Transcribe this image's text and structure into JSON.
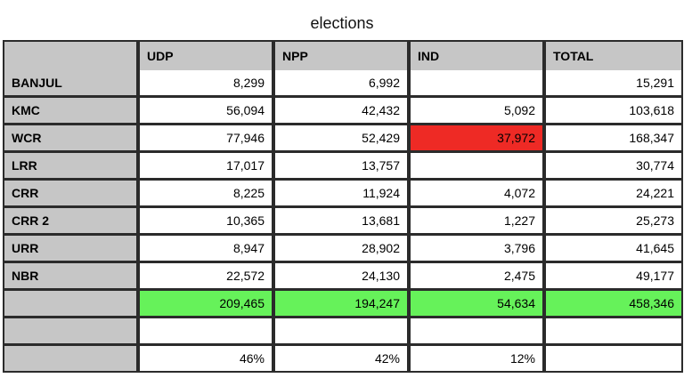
{
  "title": "elections",
  "colors": {
    "header_bg": "#c6c6c6",
    "grid_line": "#2b2b2b",
    "highlight_red": "#ee2a25",
    "highlight_green": "#66f25a"
  },
  "table": {
    "headers": [
      "",
      "UDP",
      "NPP",
      "IND",
      "TOTAL"
    ],
    "rows": [
      {
        "label": "BANJUL",
        "values": [
          "8,299",
          "6,992",
          "",
          "15,291"
        ]
      },
      {
        "label": "KMC",
        "values": [
          "56,094",
          "42,432",
          "5,092",
          "103,618"
        ]
      },
      {
        "label": "WCR",
        "values": [
          "77,946",
          "52,429",
          "37,972",
          "168,347"
        ]
      },
      {
        "label": "LRR",
        "values": [
          "17,017",
          "13,757",
          "",
          "30,774"
        ]
      },
      {
        "label": "CRR",
        "values": [
          "8,225",
          "11,924",
          "4,072",
          "24,221"
        ]
      },
      {
        "label": "CRR 2",
        "values": [
          "10,365",
          "13,681",
          "1,227",
          "25,273"
        ]
      },
      {
        "label": "URR",
        "values": [
          "8,947",
          "28,902",
          "3,796",
          "41,645"
        ]
      },
      {
        "label": "NBR",
        "values": [
          "22,572",
          "24,130",
          "2,475",
          "49,177"
        ]
      },
      {
        "label": "",
        "values": [
          "209,465",
          "194,247",
          "54,634",
          "458,346"
        ]
      },
      {
        "label": "",
        "values": [
          "",
          "",
          "",
          ""
        ]
      },
      {
        "label": "",
        "values": [
          "46%",
          "42%",
          "12%",
          ""
        ]
      }
    ]
  }
}
